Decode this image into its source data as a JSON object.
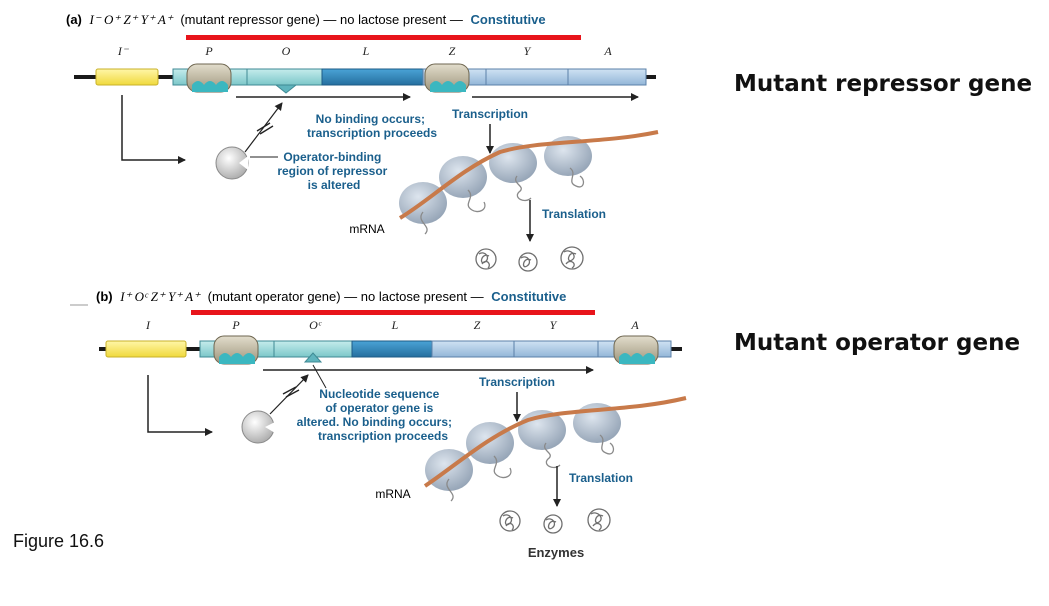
{
  "panel_a": {
    "letter": "(a)",
    "genotype": "I⁻ O⁺ Z⁺ Y⁺ A⁺",
    "description": "(mutant repressor gene) — no lactose present —",
    "status": "Constitutive",
    "gene_labels": {
      "i": "I⁻",
      "p": "P",
      "o": "O",
      "l": "L",
      "z": "Z",
      "y": "Y",
      "a": "A"
    },
    "no_binding": [
      "No binding occurs;",
      "transcription proceeds"
    ],
    "transcription": "Transcription",
    "repressor_note": [
      "Operator-binding",
      "region of repressor",
      "is altered"
    ],
    "translation": "Translation",
    "mrna": "mRNA"
  },
  "panel_b": {
    "letter": "(b)",
    "genotype": "I⁺ Oᶜ Z⁺ Y⁺ A⁺",
    "description": "(mutant operator gene) — no lactose present —",
    "status": "Constitutive",
    "gene_labels": {
      "i": "I",
      "p": "P",
      "o": "Oᶜ",
      "l": "L",
      "z": "Z",
      "y": "Y",
      "a": "A"
    },
    "operator_note": [
      "Nucleotide sequence",
      "of operator gene is",
      "altered. No binding occurs;",
      "transcription proceeds"
    ],
    "transcription": "Transcription",
    "translation": "Translation",
    "mrna": "mRNA",
    "enzymes": "Enzymes"
  },
  "side_titles": {
    "top": "Mutant repressor gene",
    "bottom": "Mutant operator gene"
  },
  "caption": "Figure 16.6",
  "colors": {
    "red_bar": "#e8141b",
    "i_gene": "#f7e35a",
    "operator": "#8fd0d2",
    "lac_dark": "#2f86bd",
    "lac_light": "#a9c7e4",
    "rna_pol": "#b9b19a",
    "repressor": "#cfcfcf",
    "mrna": "#c87a4a",
    "ribosome": "#9aa9b9",
    "label_blue": "#1a5f8c"
  }
}
